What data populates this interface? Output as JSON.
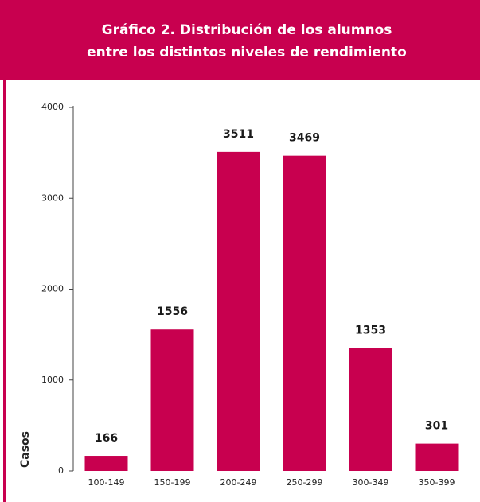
{
  "chart_data": {
    "type": "bar",
    "title": [
      "Gráfico 2. Distribución de los alumnos",
      "entre los distintos niveles de rendimiento"
    ],
    "y_label": "Casos",
    "categories": [
      "100-149",
      "150-199",
      "200-249",
      "250-299",
      "300-349",
      "350-399"
    ],
    "values": [
      166,
      1556,
      3511,
      3469,
      1353,
      301
    ],
    "color": "#c8004f",
    "ylim": [
      0,
      4000
    ],
    "yticks": [
      0,
      1000,
      2000,
      3000,
      4000
    ],
    "grid": false
  }
}
